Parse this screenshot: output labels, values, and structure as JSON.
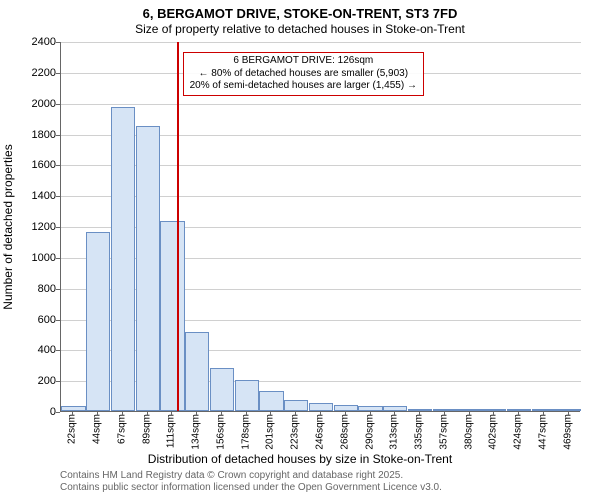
{
  "title_line1": "6, BERGAMOT DRIVE, STOKE-ON-TRENT, ST3 7FD",
  "title_line2": "Size of property relative to detached houses in Stoke-on-Trent",
  "y_axis_label": "Number of detached properties",
  "x_axis_label": "Distribution of detached houses by size in Stoke-on-Trent",
  "chart": {
    "type": "histogram",
    "ylim": [
      0,
      2400
    ],
    "ytick_step": 200,
    "y_ticks": [
      0,
      200,
      400,
      600,
      800,
      1000,
      1200,
      1400,
      1600,
      1800,
      2000,
      2200,
      2400
    ],
    "x_tick_labels": [
      "22sqm",
      "44sqm",
      "67sqm",
      "89sqm",
      "111sqm",
      "134sqm",
      "156sqm",
      "178sqm",
      "201sqm",
      "223sqm",
      "246sqm",
      "268sqm",
      "290sqm",
      "313sqm",
      "335sqm",
      "357sqm",
      "380sqm",
      "402sqm",
      "424sqm",
      "447sqm",
      "469sqm"
    ],
    "bar_values": [
      30,
      1160,
      1970,
      1850,
      1230,
      510,
      280,
      200,
      130,
      70,
      50,
      40,
      30,
      35,
      10,
      5,
      5,
      5,
      5,
      5,
      5
    ],
    "bar_fill": "#d6e4f5",
    "bar_border": "#6a8fc4",
    "grid_color": "#d0d0d0",
    "background_color": "#ffffff",
    "ref_line_color": "#cc0000",
    "ref_line_x_index": 4.67
  },
  "annotation": {
    "line1": "6 BERGAMOT DRIVE: 126sqm",
    "line2": "← 80% of detached houses are smaller (5,903)",
    "line3": "20% of semi-detached houses are larger (1,455) →"
  },
  "footer_line1": "Contains HM Land Registry data © Crown copyright and database right 2025.",
  "footer_line2": "Contains public sector information licensed under the Open Government Licence v3.0."
}
